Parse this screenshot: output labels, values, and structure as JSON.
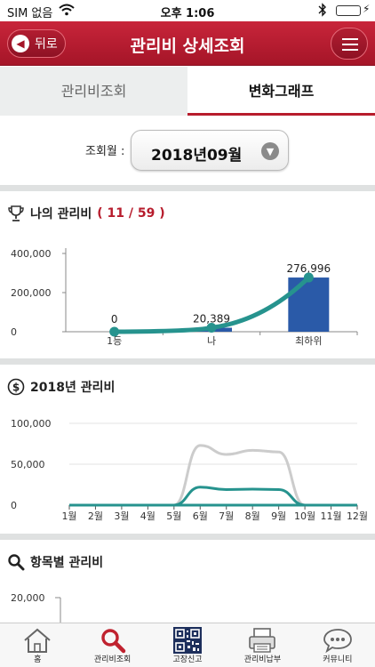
{
  "status_bar": {
    "carrier": "SIM 없음",
    "time": "오후 1:06"
  },
  "header": {
    "back_label": "뒤로",
    "title": "관리비 상세조회"
  },
  "tabs": [
    {
      "label": "관리비조회",
      "active": false
    },
    {
      "label": "변화그래프",
      "active": true
    }
  ],
  "month_selector": {
    "label": "조회월 :",
    "value": "2018년09월"
  },
  "my_fee": {
    "title": "나의 관리비",
    "rank": "( 11 / 59 )"
  },
  "year_fee": {
    "title": "2018년 관리비"
  },
  "item_fee": {
    "title": "항목별 관리비"
  },
  "bottom_nav": [
    {
      "label": "홈",
      "icon": "home-icon"
    },
    {
      "label": "관리비조회",
      "icon": "search-icon"
    },
    {
      "label": "고장신고",
      "icon": "qr-code-icon"
    },
    {
      "label": "관리비납부",
      "icon": "printer-icon"
    },
    {
      "label": "커뮤니티",
      "icon": "chat-bubble-icon"
    }
  ],
  "colors": {
    "header_red": "#b71c2c",
    "bar_blue": "#2a5aa8",
    "line_teal": "#26938e",
    "line_gray": "#cccccc"
  },
  "chart_data": [
    {
      "type": "bar",
      "title": "나의 관리비",
      "categories": [
        "1등",
        "나",
        "최하위"
      ],
      "series": [
        {
          "values": [
            0,
            20389,
            276996
          ]
        }
      ],
      "value_labels": [
        "0",
        "20,389",
        "276,996"
      ],
      "yticks": [
        "400,000",
        "200,000",
        "0"
      ],
      "ytick_values": [
        400000,
        200000,
        0
      ],
      "ylim": [
        0,
        400000
      ],
      "overlay": "line"
    },
    {
      "type": "line",
      "title": "2018년 관리비",
      "categories": [
        "1월",
        "2월",
        "3월",
        "4월",
        "5월",
        "6월",
        "7월",
        "8월",
        "9월",
        "10월",
        "11월",
        "12월"
      ],
      "series": [
        {
          "values": [
            0,
            0,
            0,
            0,
            0,
            73000,
            62000,
            67000,
            65000,
            0,
            0,
            0
          ]
        },
        {
          "values": [
            0,
            0,
            0,
            0,
            0,
            22000,
            19000,
            19500,
            19000,
            0,
            0,
            0
          ]
        }
      ],
      "yticks": [
        "100,000",
        "50,000",
        "0"
      ],
      "ytick_values": [
        100000,
        50000,
        0
      ],
      "ylim": [
        0,
        100000
      ]
    },
    {
      "type": "bar",
      "title": "항목별 관리비",
      "yticks": [
        "20,000"
      ],
      "ytick_values": [
        20000
      ]
    }
  ]
}
